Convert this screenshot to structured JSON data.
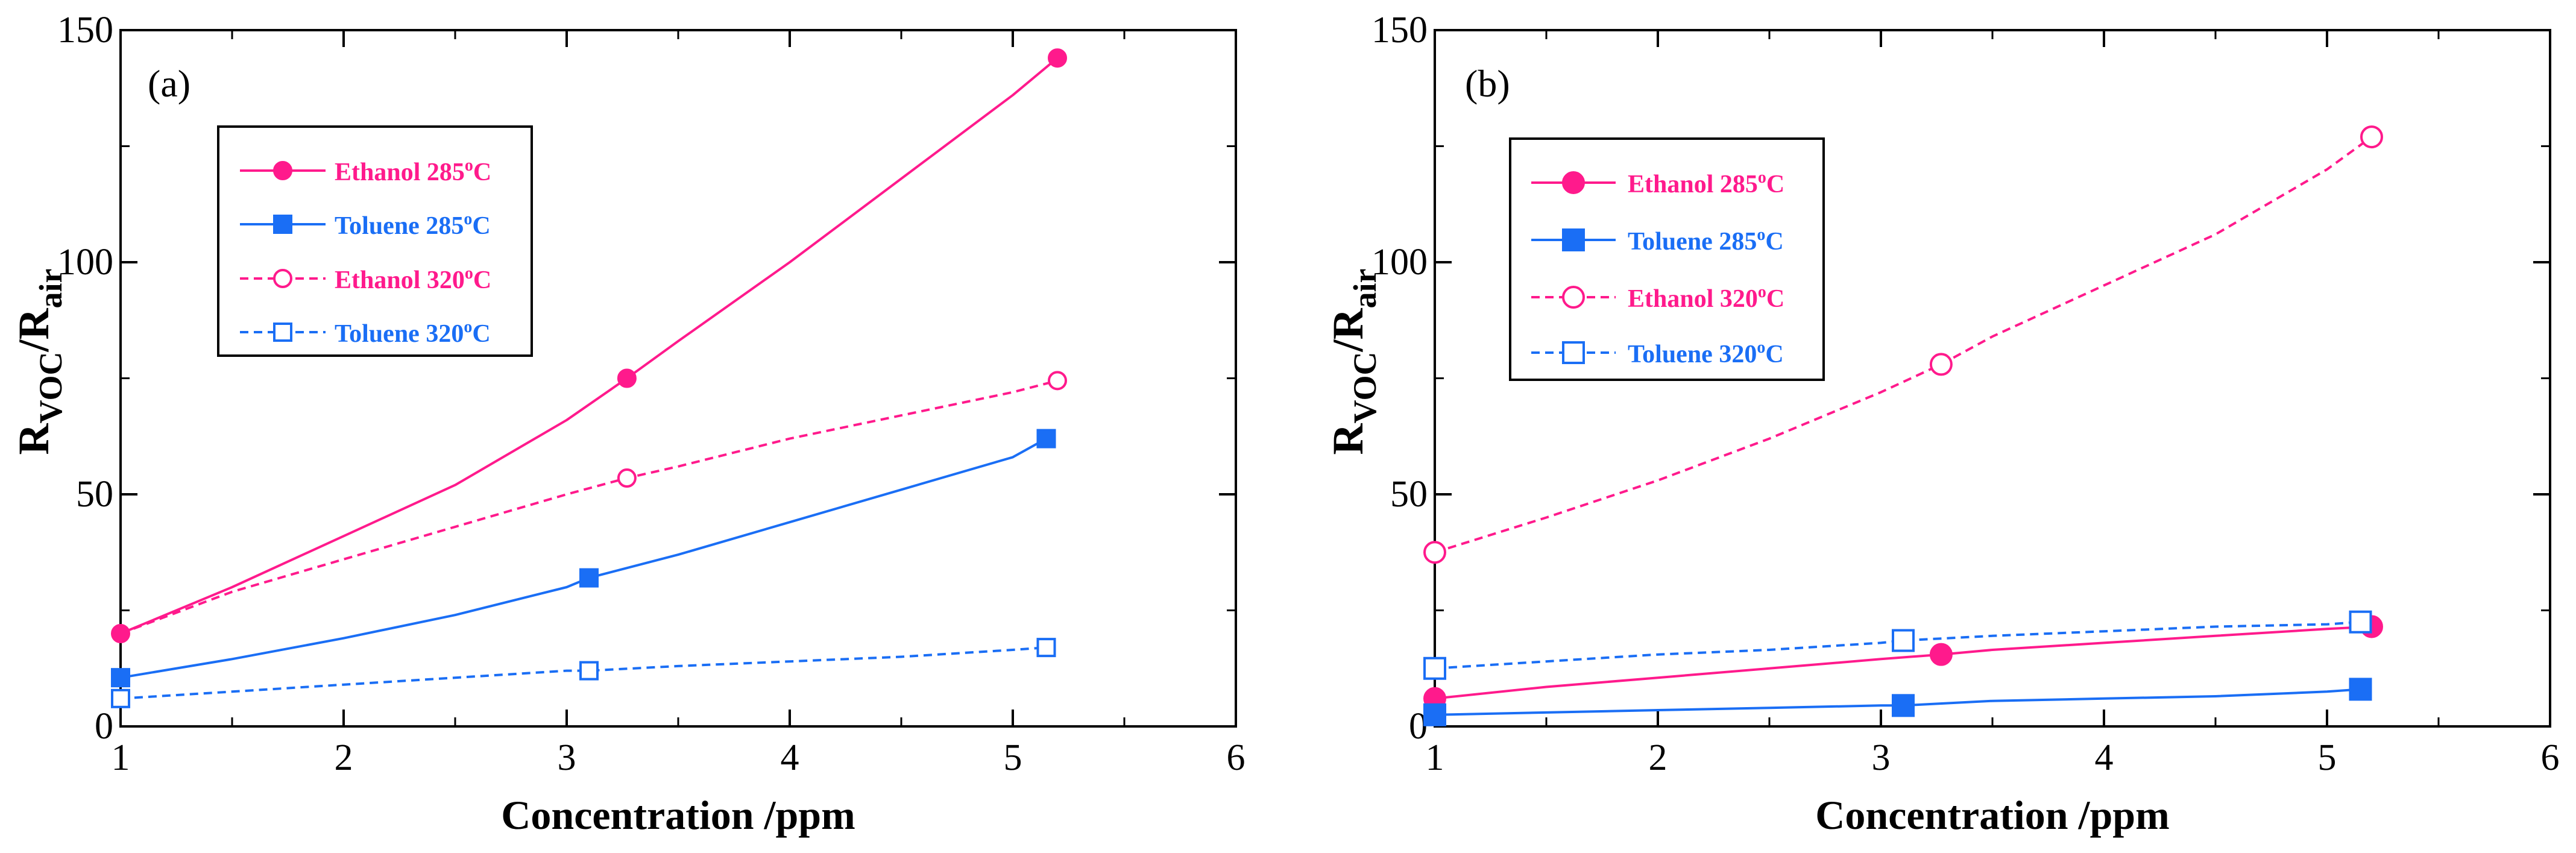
{
  "colors": {
    "ethanol": "#ff1a8c",
    "toluene": "#1a6ef5",
    "axis": "#000000"
  },
  "chart_data": [
    {
      "type": "line",
      "panel_label": "(a)",
      "xlabel": "Concentration /ppm",
      "ylabel_main": "R",
      "ylabel_sub1": "VOC",
      "ylabel_mid": "/R",
      "ylabel_sub2": "air",
      "xlim": [
        1,
        6
      ],
      "ylim": [
        0,
        150
      ],
      "xticks": [
        1,
        2,
        3,
        4,
        5,
        6
      ],
      "yticks": [
        0,
        50,
        100,
        150
      ],
      "grid": false,
      "legend_position": "upper-left",
      "series": [
        {
          "name": "Ethanol 285",
          "temp_suffix": "C",
          "temp_sup": "o",
          "color": "ethanol",
          "dashed": false,
          "marker": "circle",
          "filled": true,
          "x": [
            1.0,
            1.5,
            2.0,
            2.5,
            3.0,
            3.27,
            3.5,
            4.0,
            4.5,
            5.0,
            5.2
          ],
          "y": [
            20,
            30,
            41,
            52,
            66,
            75,
            83,
            100,
            118,
            136,
            144
          ],
          "marker_indices": [
            0,
            5,
            10
          ]
        },
        {
          "name": "Toluene 285",
          "temp_suffix": "C",
          "temp_sup": "o",
          "color": "toluene",
          "dashed": false,
          "marker": "square",
          "filled": true,
          "x": [
            1.0,
            1.5,
            2.0,
            2.5,
            3.0,
            3.1,
            3.5,
            4.0,
            4.5,
            5.0,
            5.15
          ],
          "y": [
            10.5,
            14.5,
            19,
            24,
            30,
            32,
            37,
            44,
            51,
            58,
            62
          ],
          "marker_indices": [
            0,
            5,
            10
          ]
        },
        {
          "name": "Ethanol 320",
          "temp_suffix": "C",
          "temp_sup": "o",
          "color": "ethanol",
          "dashed": true,
          "marker": "circle",
          "filled": false,
          "x": [
            1.0,
            1.5,
            2.0,
            2.5,
            3.0,
            3.27,
            3.5,
            4.0,
            4.5,
            5.0,
            5.2
          ],
          "y": [
            20,
            29,
            36,
            43,
            50,
            53.5,
            56,
            62,
            67,
            72,
            74.5
          ],
          "marker_indices": [
            5,
            10
          ]
        },
        {
          "name": "Toluene 320",
          "temp_suffix": "C",
          "temp_sup": "o",
          "color": "toluene",
          "dashed": true,
          "marker": "square",
          "filled": false,
          "x": [
            1.0,
            1.5,
            2.0,
            2.5,
            3.0,
            3.1,
            3.5,
            4.0,
            4.5,
            5.0,
            5.15
          ],
          "y": [
            6,
            7.5,
            9,
            10.5,
            12,
            12,
            13,
            14,
            15,
            16.5,
            17
          ],
          "marker_indices": [
            0,
            5,
            10
          ]
        }
      ]
    },
    {
      "type": "line",
      "panel_label": "(b)",
      "xlabel": "Concentration /ppm",
      "ylabel_main": "R",
      "ylabel_sub1": "VOC",
      "ylabel_mid": "/R",
      "ylabel_sub2": "air",
      "xlim": [
        1,
        6
      ],
      "ylim": [
        0,
        150
      ],
      "xticks": [
        1,
        2,
        3,
        4,
        5,
        6
      ],
      "yticks": [
        0,
        50,
        100,
        150
      ],
      "grid": false,
      "legend_position": "upper-left",
      "series": [
        {
          "name": "Ethanol 285",
          "temp_suffix": "C",
          "temp_sup": "o",
          "color": "ethanol",
          "dashed": false,
          "marker": "circle",
          "filled": true,
          "x": [
            1.0,
            1.5,
            2.0,
            2.5,
            3.0,
            3.27,
            3.5,
            4.0,
            4.5,
            5.0,
            5.2
          ],
          "y": [
            6,
            8.5,
            10.5,
            12.5,
            14.5,
            15.5,
            16.5,
            18,
            19.5,
            21,
            21.5
          ],
          "marker_indices": [
            0,
            5,
            10
          ]
        },
        {
          "name": "Toluene 285",
          "temp_suffix": "C",
          "temp_sup": "o",
          "color": "toluene",
          "dashed": false,
          "marker": "square",
          "filled": true,
          "x": [
            1.0,
            1.5,
            2.0,
            2.5,
            3.0,
            3.1,
            3.5,
            4.0,
            4.5,
            5.0,
            5.15
          ],
          "y": [
            2.5,
            3,
            3.5,
            4,
            4.5,
            4.5,
            5.5,
            6,
            6.5,
            7.5,
            8
          ],
          "marker_indices": [
            0,
            5,
            10
          ]
        },
        {
          "name": "Ethanol 320",
          "temp_suffix": "C",
          "temp_sup": "o",
          "color": "ethanol",
          "dashed": true,
          "marker": "circle",
          "filled": false,
          "x": [
            1.0,
            1.5,
            2.0,
            2.5,
            3.0,
            3.27,
            3.5,
            4.0,
            4.5,
            5.0,
            5.2
          ],
          "y": [
            37.5,
            45,
            53,
            62,
            72,
            78,
            84,
            95,
            106,
            120,
            127
          ],
          "marker_indices": [
            0,
            5,
            10
          ]
        },
        {
          "name": "Toluene 320",
          "temp_suffix": "C",
          "temp_sup": "o",
          "color": "toluene",
          "dashed": true,
          "marker": "square",
          "filled": false,
          "x": [
            1.0,
            1.5,
            2.0,
            2.5,
            3.0,
            3.1,
            3.5,
            4.0,
            4.5,
            5.0,
            5.15
          ],
          "y": [
            12.5,
            14,
            15.5,
            16.5,
            18,
            18.5,
            19.5,
            20.5,
            21.5,
            22,
            22.5
          ],
          "marker_indices": [
            0,
            5,
            10
          ]
        }
      ]
    }
  ]
}
